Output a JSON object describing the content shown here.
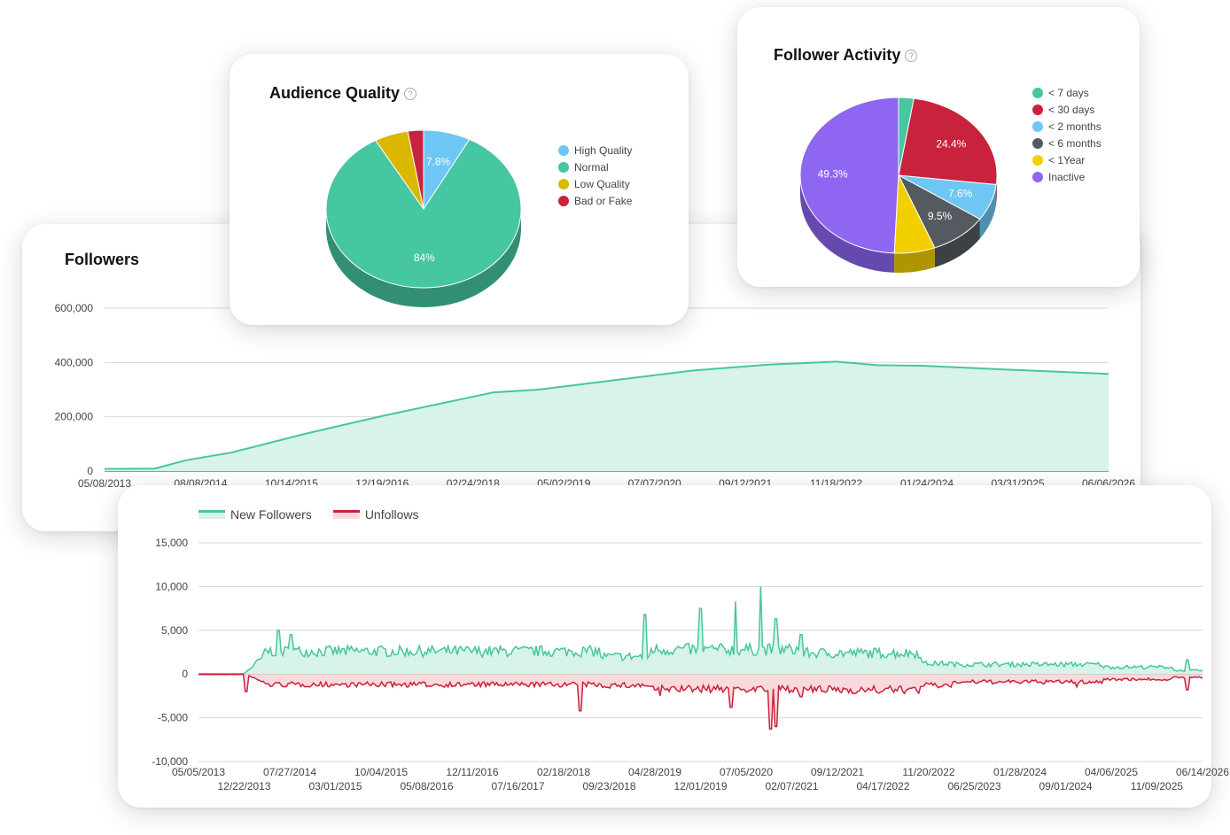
{
  "followers_card": {
    "title": "Followers"
  },
  "audience_card": {
    "title": "Audience Quality",
    "help": "?"
  },
  "activity_card": {
    "title": "Follower Activity",
    "help": "?"
  },
  "colors": {
    "green": "#46c6a1",
    "red": "#c9223c",
    "blue": "#6ec6f5",
    "yellow": "#dbb800",
    "purple": "#8e66f2",
    "gray": "#555a60"
  },
  "chart_data": [
    {
      "type": "area",
      "title": "Followers",
      "y_ticks": [
        "600,000",
        "400,000",
        "200,000",
        "0"
      ],
      "ylim": [
        0,
        600000
      ],
      "x_ticks": [
        "05/08/2013",
        "08/08/2014",
        "10/14/2015",
        "12/19/2016",
        "02/24/2018",
        "05/02/2019",
        "07/07/2020",
        "09/12/2021",
        "11/18/2022",
        "01/24/2024",
        "03/31/2025",
        "06/06/2026"
      ],
      "x": [
        "05/08/2013",
        "01/01/2014",
        "06/01/2014",
        "01/01/2015",
        "01/01/2016",
        "01/01/2017",
        "01/01/2018",
        "06/01/2018",
        "01/01/2019",
        "01/01/2020",
        "01/01/2021",
        "01/01/2022",
        "11/18/2022",
        "06/01/2023",
        "01/01/2024",
        "01/01/2025",
        "06/06/2026"
      ],
      "values": [
        8000,
        9000,
        40000,
        68000,
        140000,
        205000,
        265000,
        290000,
        300000,
        335000,
        370000,
        392000,
        403000,
        390000,
        388000,
        375000,
        358000
      ],
      "grid": true,
      "color": "#46c6a1"
    },
    {
      "type": "pie",
      "title": "Audience Quality",
      "labels": [
        "High Quality",
        "Normal",
        "Low Quality",
        "Bad or Fake"
      ],
      "values": [
        7.8,
        84,
        5.6,
        2.6
      ],
      "value_labels": [
        "7.8%",
        "84%",
        "",
        ""
      ],
      "colors": [
        "#6ec6f5",
        "#46c6a1",
        "#dbb800",
        "#c9223c"
      ],
      "legend": "right"
    },
    {
      "type": "pie",
      "title": "Follower Activity",
      "labels": [
        "< 7 days",
        "< 30 days",
        "< 2 months",
        "< 6 months",
        "< 1Year",
        "Inactive"
      ],
      "values": [
        2.5,
        24.4,
        7.6,
        9.5,
        6.7,
        49.3
      ],
      "value_labels": [
        "",
        "24.4%",
        "7.6%",
        "9.5%",
        "",
        "49.3%"
      ],
      "colors": [
        "#46c6a1",
        "#c9223c",
        "#6ec6f5",
        "#555a60",
        "#f2d000",
        "#8e66f2"
      ],
      "legend": "right"
    },
    {
      "type": "area",
      "series": [
        {
          "name": "New Followers",
          "color": "#46c6a1"
        },
        {
          "name": "Unfollows",
          "color": "#c9223c"
        }
      ],
      "y_ticks": [
        "15,000",
        "10,000",
        "5,000",
        "0",
        "-5,000",
        "-10,000"
      ],
      "ylim": [
        -10000,
        15000
      ],
      "x_ticks_row1": [
        "05/05/2013",
        "07/27/2014",
        "10/04/2015",
        "12/11/2016",
        "02/18/2018",
        "04/28/2019",
        "07/05/2020",
        "09/12/2021",
        "11/20/2022",
        "01/28/2024",
        "04/06/2025",
        "06/14/2026"
      ],
      "x_ticks_row2": [
        "12/22/2013",
        "03/01/2015",
        "05/08/2016",
        "07/16/2017",
        "09/23/2018",
        "12/01/2019",
        "02/07/2021",
        "04/17/2022",
        "06/25/2023",
        "09/01/2024",
        "11/09/2025"
      ],
      "grid": true,
      "legend": "top-left"
    }
  ]
}
